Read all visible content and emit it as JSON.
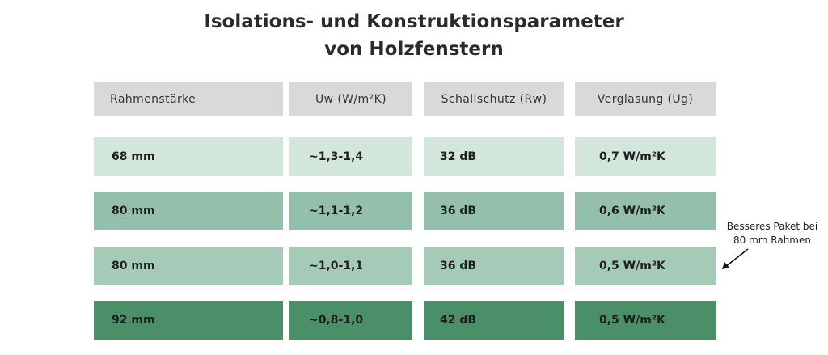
{
  "title": [
    "Isolations- und Konstruktionsparameter",
    "von Holzfenstern"
  ],
  "table": {
    "header": [
      "Rahmenstärke",
      "Uw (W/m²K)",
      "Schallschutz (Rw)",
      "Verglasung (Ug)"
    ],
    "rows": [
      [
        "68 mm",
        "~1,3-1,4",
        "32 dB",
        "0,7 W/m²K"
      ],
      [
        "80 mm",
        "~1,1-1,2",
        "36 dB",
        "0,6 W/m²K"
      ],
      [
        "80 mm",
        "~1,0-1,1",
        "36 dB",
        "0,5 W/m²K"
      ],
      [
        "92 mm",
        "~0,8-1,0",
        "42 dB",
        "0,5 W/m²K"
      ]
    ]
  },
  "annotation": [
    "Besseres Paket bei",
    "80 mm Rahmen"
  ]
}
